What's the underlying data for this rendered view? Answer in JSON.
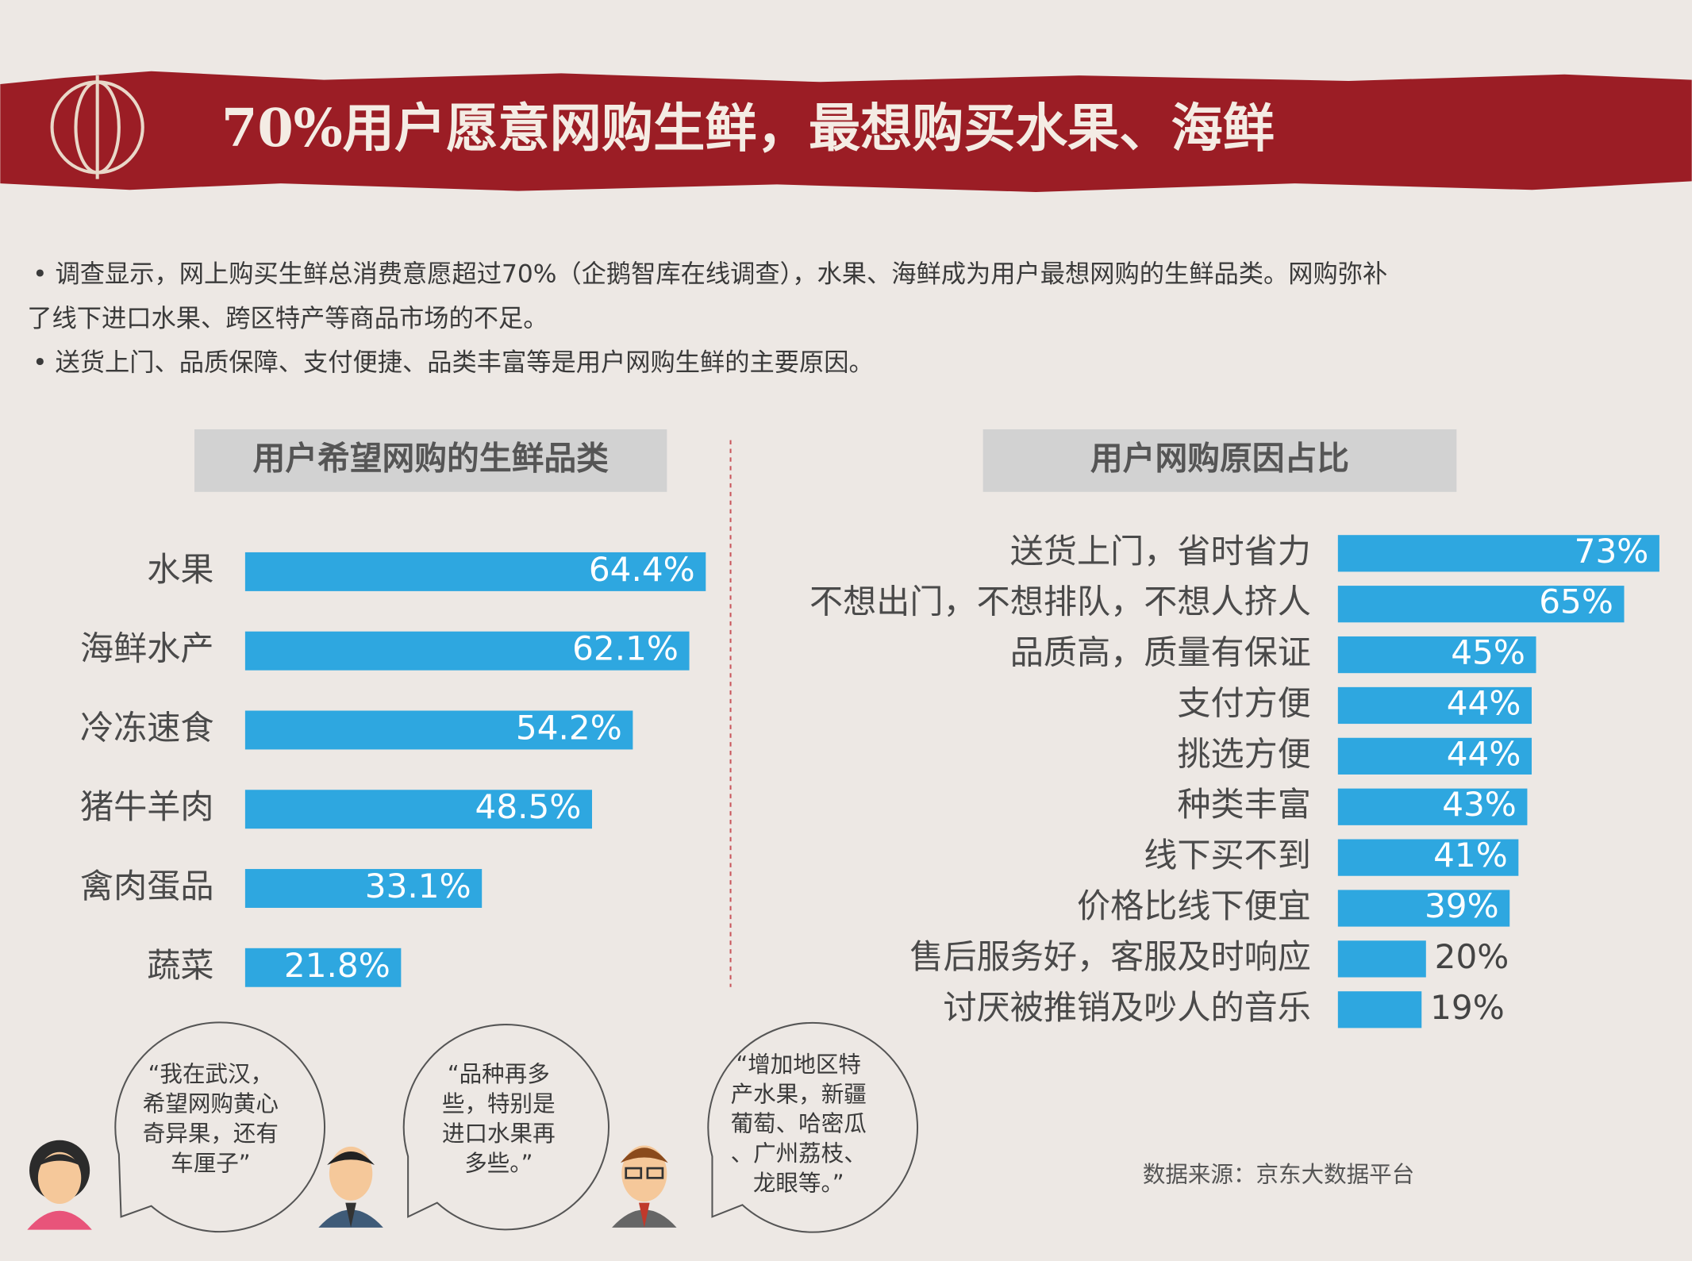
{
  "title": "70%用户愿意网购生鲜，最想购买水果、海鲜",
  "bullets": [
    "• 调查显示，网上购买生鲜总消费意愿超过70%（企鹅智库在线调查），水果、海鲜成为用户最想网购的生鲜品类。网购弥补",
    "了线下进口水果、跨区特产等商品市场的不足。",
    "• 送货上门、品质保障、支付便捷、品类丰富等是用户网购生鲜的主要原因。"
  ],
  "chart_data": [
    {
      "type": "bar",
      "title": "用户希望网购的生鲜品类",
      "color": "#2ea7e0",
      "categories": [
        "水果",
        "海鲜水产",
        "冷冻速食",
        "猪牛羊肉",
        "禽肉蛋品",
        "蔬菜"
      ],
      "values": [
        64.4,
        62.1,
        54.2,
        48.5,
        33.1,
        21.8
      ],
      "value_labels": [
        "64.4%",
        "62.1%",
        "54.2%",
        "48.5%",
        "33.1%",
        "21.8%"
      ]
    },
    {
      "type": "bar",
      "title": "用户网购原因占比",
      "color": "#2ea7e0",
      "categories": [
        "送货上门，省时省力",
        "不想出门，不想排队，不想人挤人",
        "品质高，质量有保证",
        "支付方便",
        "挑选方便",
        "种类丰富",
        "线下买不到",
        "价格比线下便宜",
        "售后服务好，客服及时响应",
        "讨厌被推销及吵人的音乐"
      ],
      "values": [
        73,
        65,
        45,
        44,
        44,
        43,
        41,
        39,
        20,
        19
      ],
      "value_labels": [
        "73%",
        "65%",
        "45%",
        "44%",
        "44%",
        "43%",
        "41%",
        "39%",
        "20%",
        "19%"
      ]
    }
  ],
  "quotes": [
    [
      "“我在武汉，",
      "希望网购黄心",
      "奇异果，还有",
      "车厘子”"
    ],
    [
      "“品种再多",
      "些，特别是",
      "进口水果再",
      "多些。”"
    ],
    [
      "“增加地区特",
      "产水果，新疆",
      "葡萄、哈密瓜",
      "、广州荔枝、",
      "龙眼等。”"
    ]
  ],
  "source": "数据来源：京东大数据平台"
}
